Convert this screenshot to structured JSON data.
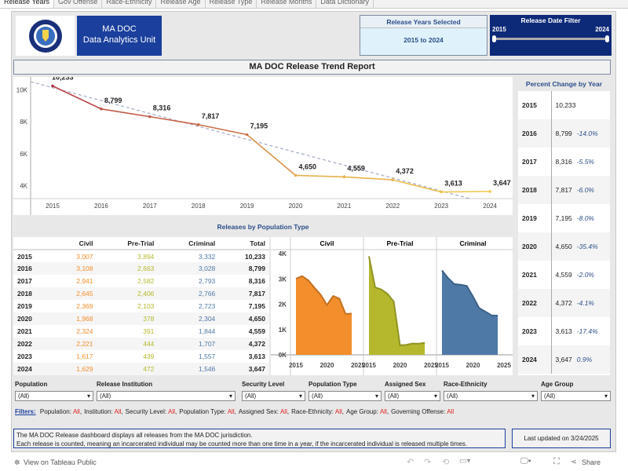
{
  "tabs": [
    "Release Years",
    "Gov Offense",
    "Race-Ethnicity",
    "Release Age",
    "Release Type",
    "Release Months",
    "Data Dictionary"
  ],
  "header": {
    "unit_line1": "MA DOC",
    "unit_line2": "Data Analytics Unit",
    "years_selected_title": "Release Years Selected",
    "years_selected_value": "2015 to 2024",
    "date_filter_title": "Release Date Filter",
    "date_filter_min": "2015",
    "date_filter_max": "2024",
    "report_title": "MA DOC Release Trend Report"
  },
  "colors": {
    "civil": "#f28e2b",
    "pretrial": "#b5b82c",
    "criminal": "#4e79a7",
    "brand_blue": "#1a3f9c",
    "filter_value": "#e02020"
  },
  "chart_data": [
    {
      "type": "line",
      "x": [
        2015,
        2016,
        2017,
        2018,
        2019,
        2020,
        2021,
        2022,
        2023,
        2024
      ],
      "values": [
        10233,
        8799,
        8316,
        7817,
        7195,
        4650,
        4559,
        4372,
        3613,
        3647
      ],
      "data_labels": [
        "10,233",
        "8,799",
        "8,316",
        "7,817",
        "7,195",
        "4,650",
        "4,559",
        "4,372",
        "3,613",
        "3,647"
      ],
      "y_ticks": [
        "4K",
        "6K",
        "8K",
        "10K"
      ],
      "ylim": [
        3200,
        10700
      ],
      "trend_line": true,
      "grid": false
    },
    {
      "type": "area",
      "title": "Releases by Population Type",
      "panels": [
        "Civil",
        "Pre-Trial",
        "Criminal"
      ],
      "x": [
        2015,
        2016,
        2017,
        2018,
        2019,
        2020,
        2021,
        2022,
        2023,
        2024
      ],
      "series": [
        {
          "name": "Civil",
          "values": [
            3007,
            3108,
            2941,
            2645,
            2369,
            1968,
            2324,
            2221,
            1617,
            1629
          ]
        },
        {
          "name": "Pre-Trial",
          "values": [
            3894,
            2663,
            2582,
            2406,
            2103,
            378,
            391,
            444,
            439,
            472
          ]
        },
        {
          "name": "Criminal",
          "values": [
            3332,
            3028,
            2793,
            2766,
            2723,
            2304,
            1844,
            1707,
            1557,
            1546
          ]
        }
      ],
      "y_ticks": [
        "0K",
        "1K",
        "2K",
        "3K",
        "4K"
      ],
      "x_ticks": [
        "2015",
        "2020",
        "2025"
      ],
      "ylim": [
        0,
        4000
      ]
    }
  ],
  "pop_table": {
    "headers": [
      "",
      "Civil",
      "Pre-Trial",
      "Criminal",
      "Total"
    ],
    "rows": [
      [
        "2015",
        "3,007",
        "3,894",
        "3,332",
        "10,233"
      ],
      [
        "2016",
        "3,108",
        "2,663",
        "3,028",
        "8,799"
      ],
      [
        "2017",
        "2,941",
        "2,582",
        "2,793",
        "8,316"
      ],
      [
        "2018",
        "2,645",
        "2,406",
        "2,766",
        "7,817"
      ],
      [
        "2019",
        "2,369",
        "2,103",
        "2,723",
        "7,195"
      ],
      [
        "2020",
        "1,968",
        "378",
        "2,304",
        "4,650"
      ],
      [
        "2021",
        "2,324",
        "391",
        "1,844",
        "4,559"
      ],
      [
        "2022",
        "2,221",
        "444",
        "1,707",
        "4,372"
      ],
      [
        "2023",
        "1,617",
        "439",
        "1,557",
        "3,613"
      ],
      [
        "2024",
        "1,629",
        "472",
        "1,546",
        "3,647"
      ]
    ]
  },
  "pct_change": {
    "title": "Percent Change by Year",
    "rows": [
      [
        "2015",
        "10,233",
        ""
      ],
      [
        "2016",
        "8,799",
        "-14.0%"
      ],
      [
        "2017",
        "8,316",
        "-5.5%"
      ],
      [
        "2018",
        "7,817",
        "-6.0%"
      ],
      [
        "2019",
        "7,195",
        "-8.0%"
      ],
      [
        "2020",
        "4,650",
        "-35.4%"
      ],
      [
        "2021",
        "4,559",
        "-2.0%"
      ],
      [
        "2022",
        "4,372",
        "-4.1%"
      ],
      [
        "2023",
        "3,613",
        "-17.4%"
      ],
      [
        "2024",
        "3,647",
        "0.9%"
      ]
    ]
  },
  "filters": [
    {
      "label": "Population",
      "value": "(All)"
    },
    {
      "label": "Release Institution",
      "value": "(All)"
    },
    {
      "label": "Security Level",
      "value": "(All)"
    },
    {
      "label": "Population Type",
      "value": "(All)"
    },
    {
      "label": "Assigned Sex",
      "value": "(All)"
    },
    {
      "label": "Race-Ethnicity",
      "value": "(All)"
    },
    {
      "label": "Age Group",
      "value": "(All)"
    }
  ],
  "filter_summary": {
    "label": "Filters:",
    "items": [
      [
        "Population:",
        "All"
      ],
      [
        "Institution:",
        "All"
      ],
      [
        "Security Level:",
        "All"
      ],
      [
        "Population Type:",
        "All"
      ],
      [
        "Assigned Sex:",
        "All"
      ],
      [
        "Race-Ethnicity:",
        "All"
      ],
      [
        "Age Group:",
        "All"
      ],
      [
        "Governing Offense:",
        "All"
      ]
    ]
  },
  "note": {
    "line1": "The MA DOC Release dashboard displays all releases from the MA DOC jurisdiction.",
    "line2": "Each release is counted, meaning an incarcerated individual may be counted more than one time in a year, if the incarcerated individual is released multiple times."
  },
  "last_updated": "Last updated on 3/24/2025",
  "footer": {
    "view_label": "View on Tableau Public",
    "share_label": "Share"
  }
}
